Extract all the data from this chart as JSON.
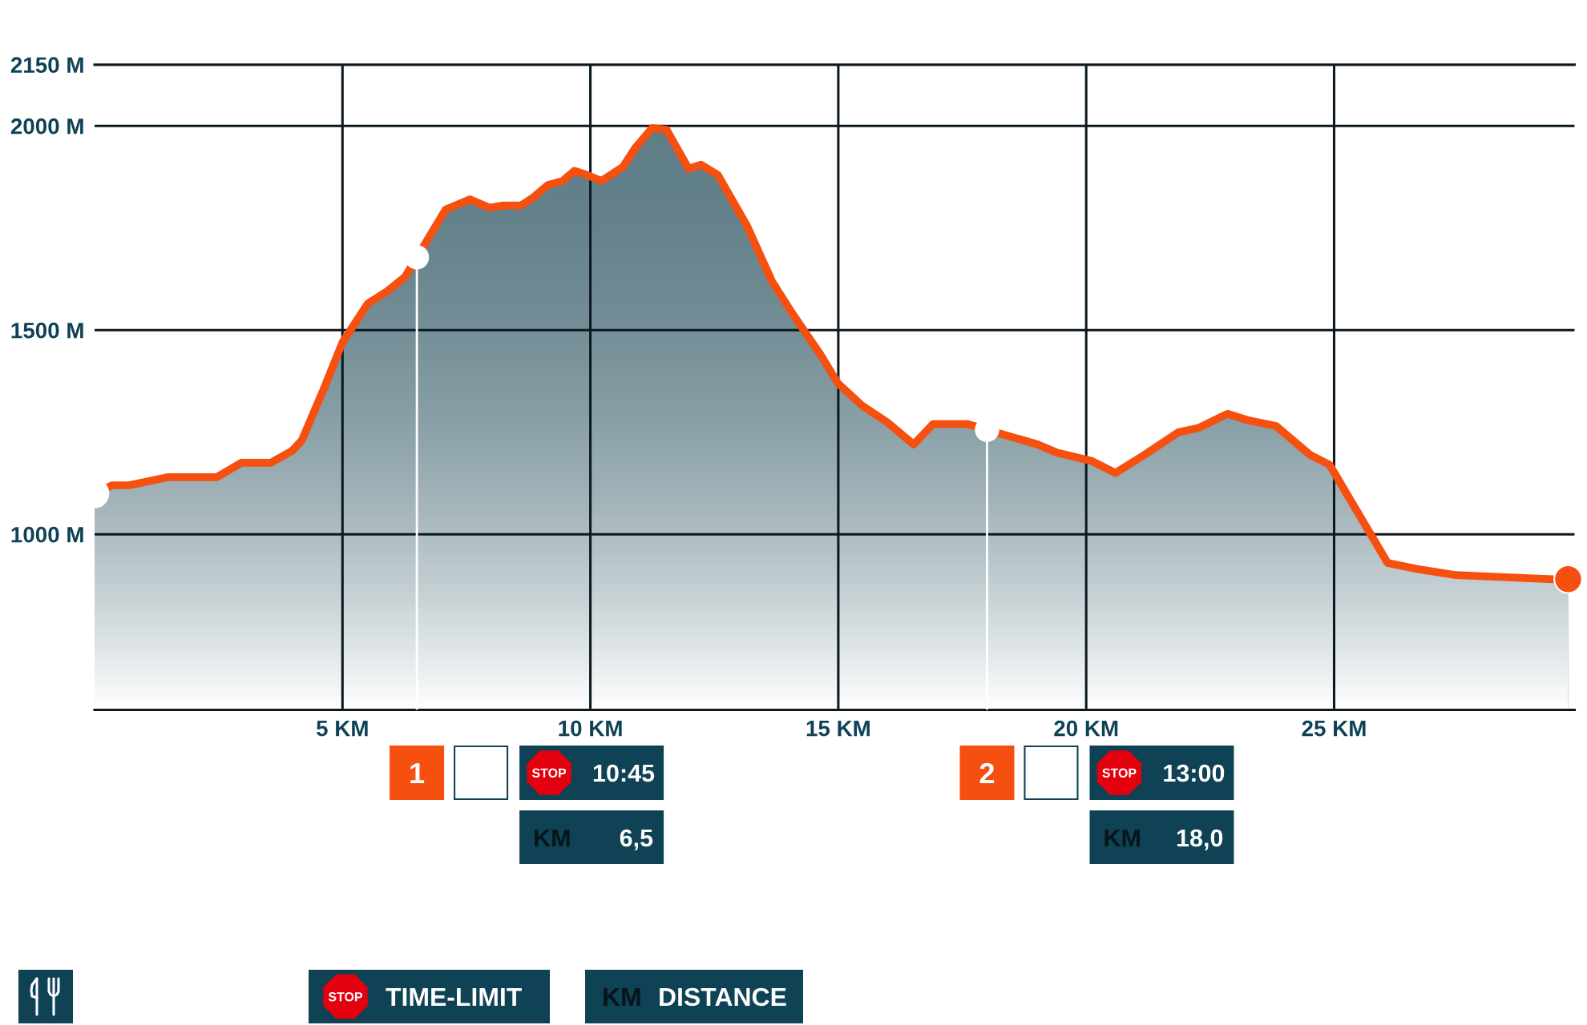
{
  "chart_data": {
    "type": "area",
    "x": [
      0,
      0.36,
      0.7,
      1.49,
      2.47,
      2.96,
      3.55,
      3.99,
      4.18,
      4.62,
      5.0,
      5.51,
      5.9,
      6.26,
      7.08,
      7.57,
      7.96,
      8.26,
      8.6,
      8.85,
      9.14,
      9.44,
      9.68,
      9.93,
      10.22,
      10.66,
      10.9,
      11.25,
      11.54,
      11.98,
      12.23,
      12.57,
      13.16,
      13.66,
      14.05,
      14.64,
      14.99,
      15.48,
      15.98,
      16.52,
      16.91,
      17.35,
      17.6,
      19.02,
      19.41,
      20.1,
      20.59,
      21.18,
      21.86,
      22.26,
      22.85,
      23.24,
      23.83,
      24.51,
      24.91,
      25.25,
      26.08,
      26.67,
      27.46,
      28.44,
      29.42,
      29.72
    ],
    "series": [
      {
        "color": "#f5500f",
        "values": [
          1100,
          1120,
          1120,
          1140,
          1140,
          1175,
          1175,
          1205,
          1230,
          1355,
          1470,
          1565,
          1595,
          1630,
          1795,
          1820,
          1800,
          1805,
          1805,
          1825,
          1855,
          1865,
          1890,
          1880,
          1865,
          1900,
          1945,
          1995,
          1990,
          1895,
          1905,
          1880,
          1755,
          1620,
          1545,
          1440,
          1370,
          1315,
          1275,
          1220,
          1270,
          1270,
          1270,
          1220,
          1200,
          1180,
          1150,
          1195,
          1250,
          1260,
          1295,
          1280,
          1265,
          1195,
          1170,
          1100,
          930,
          915,
          900,
          895,
          890,
          890
        ]
      },
      {
        "type": "scatter",
        "marker": "circle",
        "x": [
          0,
          29.72
        ],
        "values": [
          1100,
          890
        ],
        "colors": [
          "#ffffff",
          "#f5500f"
        ]
      }
    ],
    "xlim": [
      0,
      29.85
    ],
    "ylim": [
      570,
      2150
    ],
    "xticks": [
      {
        "value": 5,
        "label": "5 KM"
      },
      {
        "value": 10,
        "label": "10 KM"
      },
      {
        "value": 15,
        "label": "15 KM"
      },
      {
        "value": 20,
        "label": "20 KM"
      },
      {
        "value": 25,
        "label": "25 KM"
      }
    ],
    "yticks": [
      {
        "value": 1000,
        "label": "1000 M"
      },
      {
        "value": 1500,
        "label": "1500 M"
      },
      {
        "value": 2000,
        "label": "2000 M"
      },
      {
        "value": 2150,
        "label": "2150 M"
      }
    ],
    "grid": true,
    "ref_lines": [
      {
        "axis": "x",
        "value": 6.5,
        "color": "#ffffff"
      },
      {
        "axis": "x",
        "value": 18.0,
        "color": "#ffffff"
      }
    ],
    "annotations": [
      "1",
      "STOP",
      "10:45",
      "KM",
      "6,5",
      "2",
      "STOP",
      "13:00",
      "KM",
      "18,0",
      "STOP",
      "TIME-LIMIT",
      "KM",
      "DISTANCE"
    ]
  }
}
